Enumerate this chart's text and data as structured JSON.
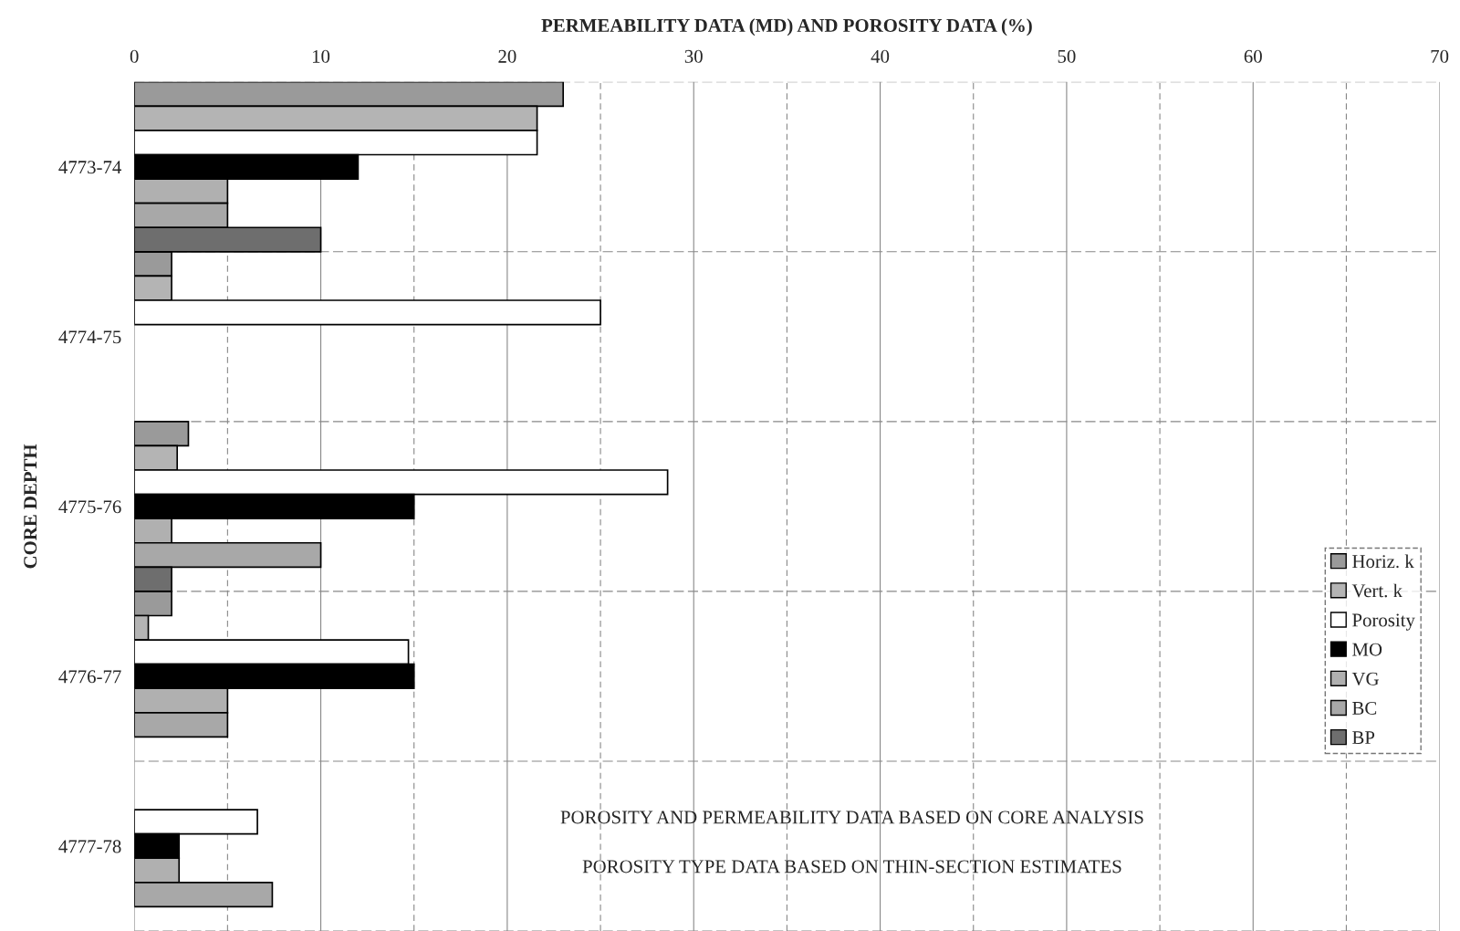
{
  "chart_data": {
    "type": "bar",
    "orientation": "horizontal",
    "xlabel": "PERMEABILITY DATA (MD) AND POROSITY DATA (%)",
    "ylabel": "CORE DEPTH",
    "categories": [
      "4773-74",
      "4774-75",
      "4775-76",
      "4776-77",
      "4777-78"
    ],
    "series": [
      {
        "name": "Horiz. k",
        "color": "#9a9a9a",
        "values": [
          23,
          2,
          2.9,
          2,
          null
        ]
      },
      {
        "name": "Vert. k",
        "color": "#b4b4b4",
        "values": [
          21.6,
          2,
          2.3,
          0.75,
          null
        ]
      },
      {
        "name": "Porosity",
        "color": "#ffffff",
        "values": [
          21.6,
          25,
          28.6,
          14.7,
          6.6
        ]
      },
      {
        "name": "MO",
        "color": "#000000",
        "values": [
          12,
          null,
          15,
          15,
          2.4
        ]
      },
      {
        "name": "VG",
        "color": "#b0b0b0",
        "values": [
          5,
          null,
          2,
          5,
          2.4
        ]
      },
      {
        "name": "BC",
        "color": "#a8a8a8",
        "values": [
          5,
          null,
          10,
          5,
          7.4
        ]
      },
      {
        "name": "BP",
        "color": "#6e6e6e",
        "values": [
          10,
          null,
          2,
          null,
          null
        ]
      }
    ],
    "xlim": [
      0,
      70
    ],
    "xticks": [
      0,
      10,
      20,
      30,
      40,
      50,
      60,
      70
    ],
    "grid": true,
    "legend": "right",
    "annotations": [
      "POROSITY AND PERMEABILITY DATA BASED ON CORE ANALYSIS",
      "POROSITY TYPE DATA BASED ON THIN-SECTION ESTIMATES"
    ]
  }
}
